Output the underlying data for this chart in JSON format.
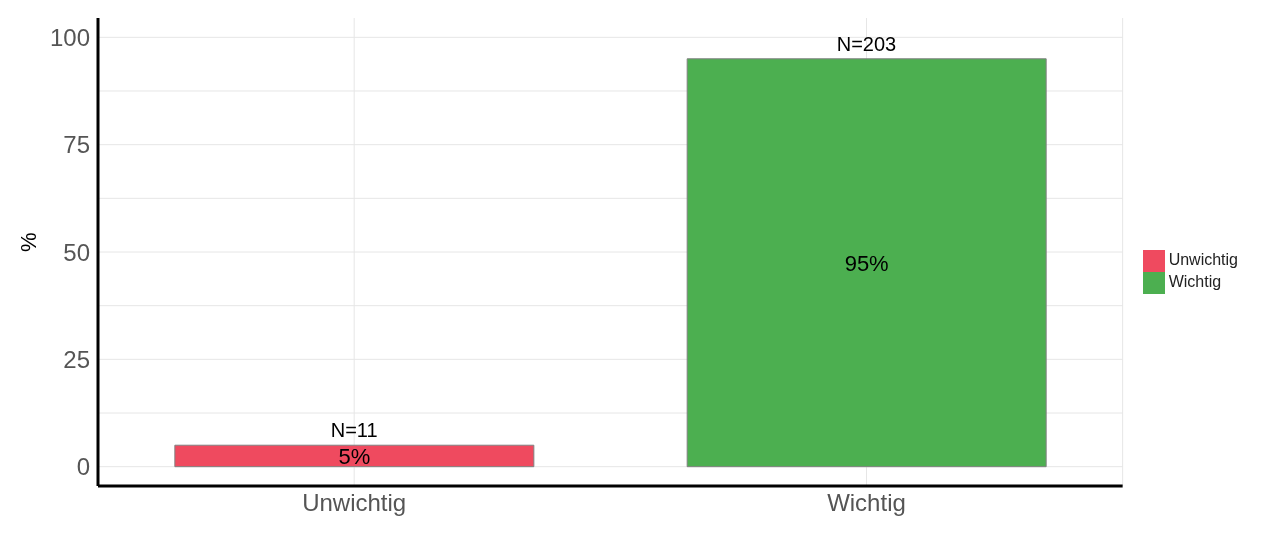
{
  "chart_data": {
    "type": "bar",
    "ylabel": "%",
    "categories": [
      "Unwichtig",
      "Wichtig"
    ],
    "series": [
      {
        "name": "Unwichtig",
        "color": "#ef4a5f",
        "values": [
          5,
          null
        ],
        "value_labels": [
          "5%",
          null
        ]
      },
      {
        "name": "Wichtig",
        "color": "#4caf50",
        "values": [
          null,
          95
        ],
        "value_labels": [
          null,
          "95%"
        ]
      }
    ],
    "annotations": [
      {
        "text": "N=11",
        "x": "Unwichtig",
        "y": 5
      },
      {
        "text": "N=203",
        "x": "Wichtig",
        "y": 95
      }
    ],
    "ylim": [
      -4.5,
      104.5
    ],
    "yticks": [
      0,
      25,
      50,
      75,
      100
    ],
    "grid": true,
    "legend": "right"
  }
}
